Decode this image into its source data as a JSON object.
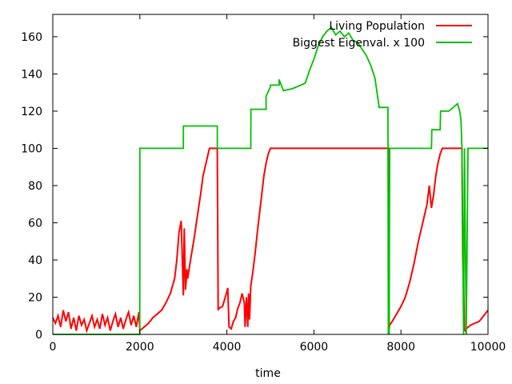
{
  "chart_data": {
    "type": "line",
    "title": "",
    "xlabel": "time",
    "ylabel": "",
    "xlim": [
      0,
      10000
    ],
    "ylim": [
      0,
      172
    ],
    "xticks": [
      0,
      2000,
      4000,
      6000,
      8000,
      10000
    ],
    "yticks": [
      0,
      20,
      40,
      60,
      80,
      100,
      120,
      140,
      160
    ],
    "grid": false,
    "legend_position": "top-right",
    "series": [
      {
        "name": "Living Population",
        "color": "#ff0000",
        "x": [
          0,
          60,
          120,
          180,
          240,
          300,
          360,
          420,
          480,
          540,
          600,
          660,
          720,
          780,
          840,
          900,
          960,
          1020,
          1080,
          1140,
          1200,
          1260,
          1320,
          1380,
          1440,
          1500,
          1560,
          1620,
          1680,
          1740,
          1800,
          1860,
          1920,
          1980,
          2000,
          2100,
          2200,
          2300,
          2400,
          2500,
          2600,
          2700,
          2800,
          2850,
          2900,
          2950,
          3000,
          3020,
          3050,
          3080,
          3100,
          3150,
          3200,
          3250,
          3300,
          3350,
          3400,
          3450,
          3500,
          3550,
          3600,
          3650,
          3700,
          3750,
          3780,
          3800,
          3820,
          3900,
          4000,
          4020,
          4050,
          4100,
          4150,
          4200,
          4250,
          4300,
          4350,
          4400,
          4420,
          4450,
          4480,
          4500,
          4520,
          4550,
          4600,
          4650,
          4700,
          4750,
          4800,
          4850,
          4900,
          4950,
          5000,
          5500,
          6000,
          6500,
          7000,
          7500,
          7720,
          7730,
          7740,
          7800,
          7900,
          8000,
          8100,
          8200,
          8300,
          8400,
          8500,
          8600,
          8650,
          8700,
          8750,
          8800,
          8850,
          8900,
          8950,
          9000,
          9200,
          9300,
          9400,
          9420,
          9440,
          9460,
          9480,
          9500,
          9600,
          9700,
          9800,
          9900,
          10000
        ],
        "values": [
          9,
          6,
          10,
          4,
          13,
          7,
          12,
          3,
          9,
          2,
          10,
          5,
          8,
          2,
          6,
          10,
          4,
          8,
          3,
          11,
          5,
          9,
          2,
          7,
          11,
          4,
          9,
          3,
          8,
          12,
          5,
          10,
          4,
          12,
          2,
          4,
          6,
          9,
          11,
          13,
          17,
          22,
          30,
          40,
          55,
          61,
          21,
          57,
          24,
          35,
          30,
          38,
          45,
          52,
          60,
          68,
          76,
          85,
          90,
          95,
          100,
          100,
          100,
          100,
          100,
          13,
          14,
          15,
          23,
          25,
          4,
          3,
          7,
          9,
          14,
          17,
          22,
          17,
          4,
          20,
          4,
          22,
          8,
          26,
          34,
          44,
          55,
          65,
          75,
          85,
          92,
          97,
          100,
          100,
          100,
          100,
          100,
          100,
          100,
          3,
          5,
          7,
          11,
          15,
          20,
          28,
          38,
          50,
          60,
          70,
          80,
          68,
          75,
          85,
          92,
          97,
          100,
          100,
          100,
          100,
          100,
          42,
          27,
          3,
          2,
          3,
          5,
          6,
          7,
          10,
          13
        ]
      },
      {
        "name": "Biggest Eigenval. x 100",
        "color": "#00c000",
        "x": [
          0,
          1999,
          2000,
          3000,
          3001,
          3780,
          3781,
          4550,
          4551,
          4900,
          4901,
          5000,
          5001,
          5200,
          5201,
          5300,
          5500,
          5800,
          5900,
          6000,
          6100,
          6200,
          6300,
          6400,
          6500,
          6600,
          6700,
          6800,
          6900,
          7000,
          7200,
          7300,
          7400,
          7500,
          7700,
          7710,
          7720,
          7730,
          7740,
          8000,
          8400,
          8700,
          8710,
          8900,
          8910,
          9100,
          9200,
          9300,
          9350,
          9380,
          9400,
          9440,
          9460,
          9500,
          9520,
          9540,
          10000
        ],
        "values": [
          0,
          0,
          100,
          100,
          112,
          112,
          100,
          100,
          121,
          121,
          128,
          133,
          134,
          134,
          137,
          131,
          132,
          135,
          142,
          148,
          155,
          160,
          163,
          165,
          161,
          163,
          160,
          162,
          158,
          157,
          150,
          145,
          138,
          122,
          122,
          0,
          1,
          0,
          100,
          100,
          100,
          100,
          110,
          110,
          120,
          120,
          122,
          124,
          120,
          115,
          100,
          0,
          100,
          0,
          50,
          100,
          100
        ]
      }
    ]
  }
}
